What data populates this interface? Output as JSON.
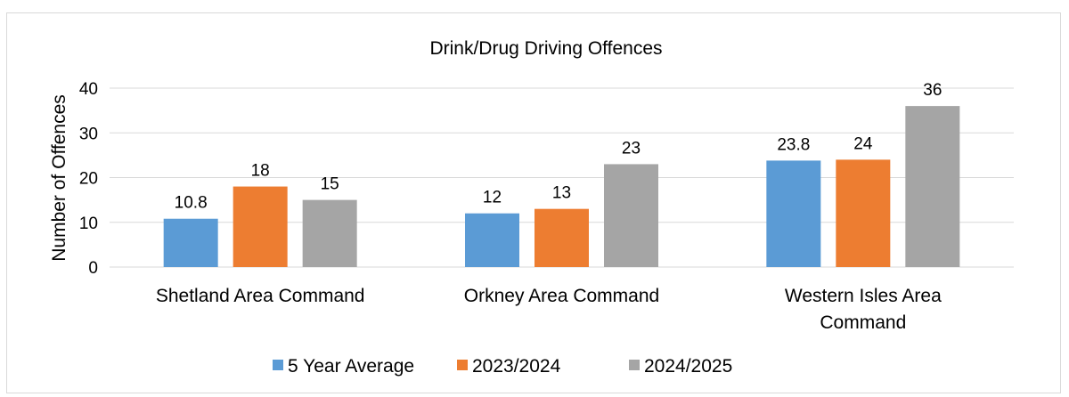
{
  "chart_data": {
    "type": "bar",
    "title": "Drink/Drug Driving Offences",
    "xlabel": "",
    "ylabel": "Number of Offences",
    "ylim": [
      0,
      40
    ],
    "yticks": [
      0,
      10,
      20,
      30,
      40
    ],
    "grid": true,
    "legend_position": "bottom",
    "categories": [
      [
        "Shetland Area Command"
      ],
      [
        "Orkney Area Command"
      ],
      [
        "Western Isles Area",
        "Command"
      ]
    ],
    "series": [
      {
        "name": "5 Year Average",
        "color": "#5b9bd5",
        "values": [
          10.8,
          12,
          23.8
        ]
      },
      {
        "name": "2023/2024",
        "color": "#ed7d31",
        "values": [
          18,
          13,
          24
        ]
      },
      {
        "name": "2024/2025",
        "color": "#a5a5a5",
        "values": [
          15,
          23,
          36
        ]
      }
    ]
  }
}
